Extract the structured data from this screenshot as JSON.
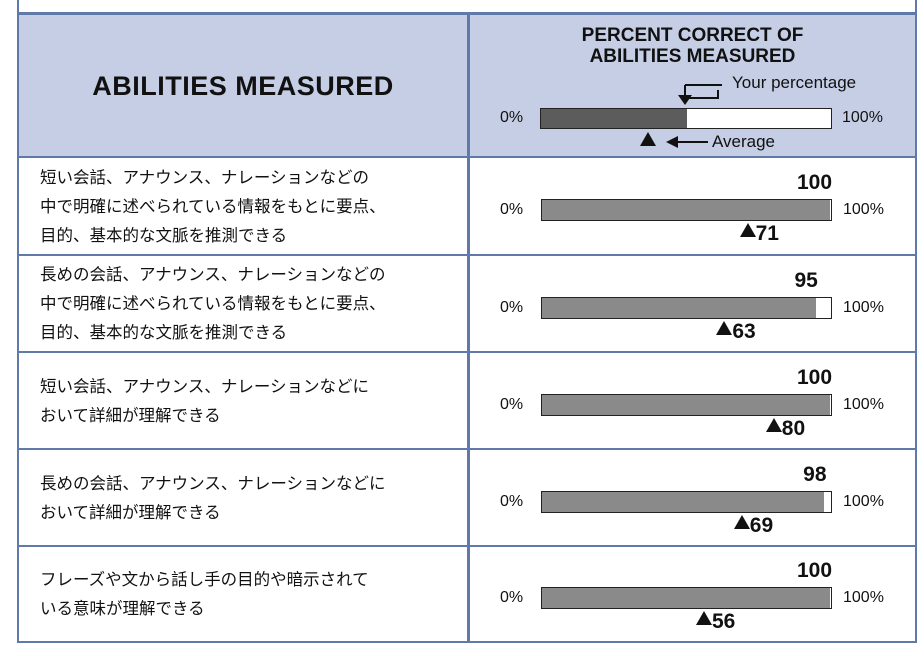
{
  "header": {
    "left_title": "ABILITIES MEASURED",
    "right_title_line1": "PERCENT CORRECT OF",
    "right_title_line2": "ABILITIES MEASURED",
    "your_percentage_label": "Your percentage",
    "average_label": "Average",
    "legend_min": "0%",
    "legend_max": "100%",
    "legend_your_value": 50,
    "legend_average_value": 37
  },
  "chart_data": {
    "type": "bar",
    "x_min_label": "0%",
    "x_max_label": "100%",
    "xlim": [
      0,
      100
    ],
    "colors": {
      "fill": "#8a8a8a",
      "legend_fill": "#5c5c5c",
      "header_bg": "#c5cee5",
      "grid": "#5f79a9"
    },
    "rows": [
      {
        "ability": "短い会話、アナウンス、ナレーションなどの\n中で明確に述べられている情報をもとに要点、\n目的、基本的な文脈を推測できる",
        "your_percentage": 100,
        "average": 71
      },
      {
        "ability": "長めの会話、アナウンス、ナレーションなどの\n中で明確に述べられている情報をもとに要点、\n目的、基本的な文脈を推測できる",
        "your_percentage": 95,
        "average": 63
      },
      {
        "ability": "短い会話、アナウンス、ナレーションなどに\nおいて詳細が理解できる",
        "your_percentage": 100,
        "average": 80
      },
      {
        "ability": "長めの会話、アナウンス、ナレーションなどに\nおいて詳細が理解できる",
        "your_percentage": 98,
        "average": 69
      },
      {
        "ability": "フレーズや文から話し手の目的や暗示されて\nいる意味が理解できる",
        "your_percentage": 100,
        "average": 56
      }
    ]
  }
}
